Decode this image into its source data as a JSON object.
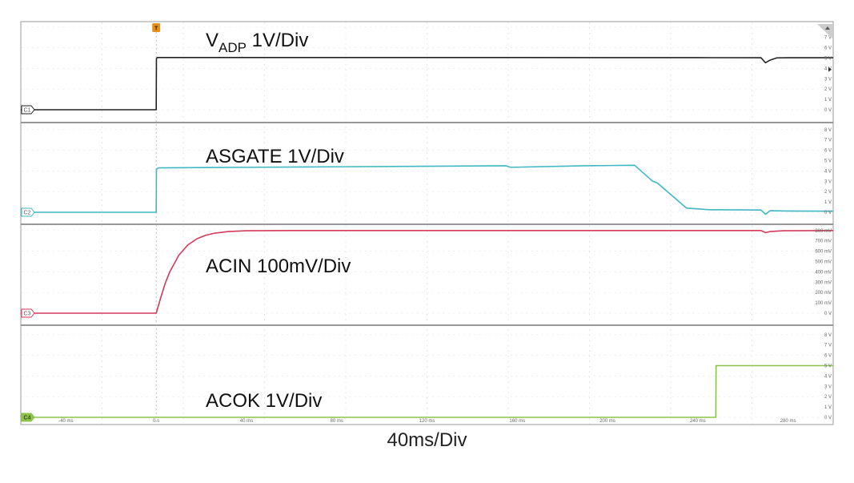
{
  "chart_data": {
    "type": "line",
    "timebase_label": "40ms/Div",
    "x_unit": "ms",
    "xlim": [
      -60,
      300
    ],
    "time_ticks": [
      {
        "value": -40,
        "label": "-40 ms"
      },
      {
        "value": 0,
        "label": "0 s"
      },
      {
        "value": 40,
        "label": "40 ms"
      },
      {
        "value": 80,
        "label": "80 ms"
      },
      {
        "value": 120,
        "label": "120 ms"
      },
      {
        "value": 160,
        "label": "160 ms"
      },
      {
        "value": 200,
        "label": "200 ms"
      },
      {
        "value": 240,
        "label": "240 ms"
      },
      {
        "value": 280,
        "label": "280 ms"
      }
    ],
    "trigger_marker": "T",
    "trigger_time": 0,
    "grid": true,
    "series": [
      {
        "name": "ADP",
        "badge": "C1",
        "label_main": "V",
        "label_sub": "ADP",
        "label_rest": " 1V/Div",
        "color": "#222222",
        "ylim": [
          0,
          8
        ],
        "y_unit": "V",
        "y_ticks": [
          {
            "value": 0,
            "label": "0 V"
          },
          {
            "value": 1,
            "label": "1 V"
          },
          {
            "value": 2,
            "label": "2 V"
          },
          {
            "value": 3,
            "label": "3 V"
          },
          {
            "value": 4,
            "label": "4 V"
          },
          {
            "value": 5,
            "label": "5 V"
          },
          {
            "value": 6,
            "label": "6 V"
          },
          {
            "value": 7,
            "label": "7 V"
          }
        ],
        "points": [
          [
            -60,
            0
          ],
          [
            0,
            0
          ],
          [
            0.1,
            4.95
          ],
          [
            0.5,
            5.05
          ],
          [
            80,
            5.05
          ],
          [
            160,
            5.05
          ],
          [
            240,
            5.04
          ],
          [
            268,
            5.03
          ],
          [
            270,
            4.55
          ],
          [
            272,
            4.8
          ],
          [
            275,
            5.02
          ],
          [
            280,
            5.03
          ],
          [
            300,
            5.03
          ]
        ]
      },
      {
        "name": "ASGATE",
        "badge": "C2",
        "label_main": "ASGATE 1V/Div",
        "color": "#3fb8c4",
        "ylim": [
          0,
          8
        ],
        "y_unit": "V",
        "y_ticks": [
          {
            "value": 0,
            "label": "0 V"
          },
          {
            "value": 1,
            "label": "1 V"
          },
          {
            "value": 2,
            "label": "2 V"
          },
          {
            "value": 3,
            "label": "3 V"
          },
          {
            "value": 4,
            "label": "4 V"
          },
          {
            "value": 5,
            "label": "5 V"
          },
          {
            "value": 6,
            "label": "6 V"
          },
          {
            "value": 7,
            "label": "7 V"
          },
          {
            "value": 8,
            "label": "8 V"
          }
        ],
        "points": [
          [
            -60,
            0
          ],
          [
            0,
            0
          ],
          [
            0.1,
            4.15
          ],
          [
            1,
            4.3
          ],
          [
            40,
            4.35
          ],
          [
            80,
            4.4
          ],
          [
            120,
            4.45
          ],
          [
            155,
            4.5
          ],
          [
            157,
            4.35
          ],
          [
            190,
            4.5
          ],
          [
            212,
            4.55
          ],
          [
            220,
            3
          ],
          [
            222,
            2.85
          ],
          [
            235,
            0.4
          ],
          [
            245,
            0.25
          ],
          [
            268,
            0.22
          ],
          [
            270,
            -0.2
          ],
          [
            272,
            0.15
          ],
          [
            280,
            0.12
          ],
          [
            300,
            0.1
          ]
        ]
      },
      {
        "name": "ACIN",
        "badge": "C3",
        "label_main": "ACIN 100mV/Div",
        "color": "#d43a5a",
        "ylim": [
          0,
          900
        ],
        "y_unit": "mV",
        "y_ticks": [
          {
            "value": 0,
            "label": "0 V"
          },
          {
            "value": 100,
            "label": "100 mV"
          },
          {
            "value": 200,
            "label": "200 mV"
          },
          {
            "value": 300,
            "label": "300 mV"
          },
          {
            "value": 400,
            "label": "400 mV"
          },
          {
            "value": 500,
            "label": "500 mV"
          },
          {
            "value": 600,
            "label": "600 mV"
          },
          {
            "value": 700,
            "label": "700 mV"
          },
          {
            "value": 800,
            "label": "800 mV"
          }
        ],
        "points": [
          [
            -60,
            0
          ],
          [
            0,
            0
          ],
          [
            2,
            150
          ],
          [
            4,
            290
          ],
          [
            6,
            400
          ],
          [
            8,
            480
          ],
          [
            10,
            560
          ],
          [
            14,
            660
          ],
          [
            18,
            720
          ],
          [
            22,
            755
          ],
          [
            26,
            775
          ],
          [
            32,
            790
          ],
          [
            40,
            798
          ],
          [
            60,
            800
          ],
          [
            100,
            800
          ],
          [
            200,
            800
          ],
          [
            268,
            800
          ],
          [
            270,
            780
          ],
          [
            272,
            790
          ],
          [
            278,
            798
          ],
          [
            300,
            800
          ]
        ]
      },
      {
        "name": "ACOK",
        "badge": "C4",
        "label_main": "ACOK 1V/Div",
        "color": "#8bc34a",
        "ylim": [
          0,
          8
        ],
        "y_unit": "V",
        "y_ticks": [
          {
            "value": 0,
            "label": "0 V"
          },
          {
            "value": 1,
            "label": "1 V"
          },
          {
            "value": 2,
            "label": "2 V"
          },
          {
            "value": 3,
            "label": "3 V"
          },
          {
            "value": 4,
            "label": "4 V"
          },
          {
            "value": 5,
            "label": "5 V"
          },
          {
            "value": 6,
            "label": "6 V"
          },
          {
            "value": 7,
            "label": "7 V"
          },
          {
            "value": 8,
            "label": "8 V"
          }
        ],
        "points": [
          [
            -60,
            0
          ],
          [
            248,
            0
          ],
          [
            248.1,
            5
          ],
          [
            300,
            5
          ]
        ]
      }
    ]
  }
}
